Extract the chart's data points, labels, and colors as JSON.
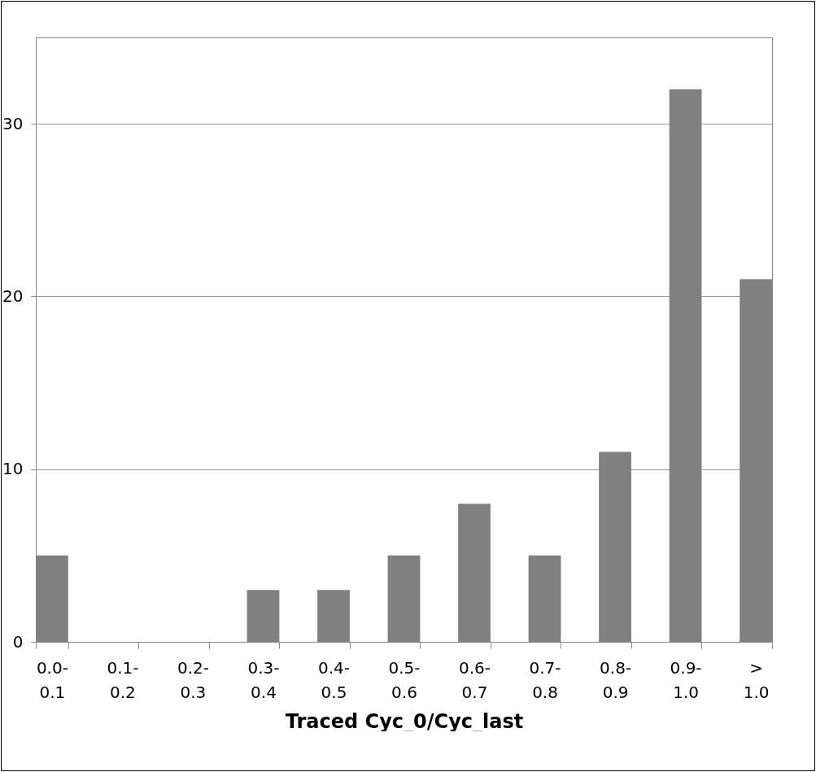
{
  "chart_data": {
    "type": "bar",
    "xlabel": "Traced Cyc_0/Cyc_last",
    "categories": [
      "0.0- 0.1",
      "0.1- 0.2",
      "0.2- 0.3",
      "0.3- 0.4",
      "0.4- 0.5",
      "0.5- 0.6",
      "0.6- 0.7",
      "0.7- 0.8",
      "0.8- 0.9",
      "0.9- 1.0",
      "> 1.0"
    ],
    "values": [
      5,
      0,
      0,
      3,
      3,
      5,
      8,
      5,
      11,
      32,
      21
    ],
    "color": "#808080",
    "ylim": [
      0,
      35
    ],
    "yticks": [
      0,
      10,
      20,
      30
    ],
    "grid": "y"
  }
}
